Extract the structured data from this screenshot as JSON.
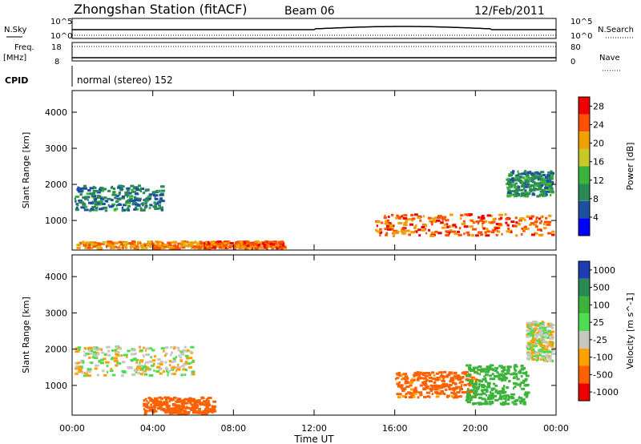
{
  "header": {
    "station": "Zhongshan Station (fitACF)",
    "beam": "Beam 06",
    "date": "12/Feb/2011"
  },
  "aux": {
    "nsky_label": "N.Sky",
    "nsky_ticks": [
      "10^5",
      "10^0"
    ],
    "nsearch_label": "N.Search",
    "nsearch_ticks": [
      "10^5",
      "10^0"
    ],
    "freq_label": "Freq.",
    "freq_unit": "[MHz]",
    "freq_ticks": [
      "18",
      "8"
    ],
    "nave_label": "Nave",
    "nave_ticks": [
      "80",
      "0"
    ],
    "cpid_label": "CPID",
    "cpid_text": "normal (stereo) 152"
  },
  "chart_data": [
    {
      "type": "heatmap",
      "title": "",
      "ylabel": "Slant Range [km]",
      "xlabel": "",
      "ylim": [
        180,
        4600
      ],
      "yticks": [
        "1000",
        "2000",
        "3000",
        "4000"
      ],
      "xticks": [
        "00:00",
        "04:00",
        "08:00",
        "12:00",
        "16:00",
        "20:00",
        "00:00"
      ],
      "colorbar": {
        "label": "Power [dB]",
        "range": [
          0,
          30
        ],
        "tick_labels": [
          "4",
          "8",
          "12",
          "16",
          "20",
          "24",
          "28"
        ],
        "colors": [
          "#0000ff",
          "#1e50a0",
          "#2a8a55",
          "#3cb43c",
          "#c8c828",
          "#f0a000",
          "#ff5000",
          "#ee0000"
        ]
      },
      "scatter_bands": [
        {
          "t0": 0.1,
          "t1": 4.5,
          "r0": 1300,
          "r1": 2000,
          "value": 8
        },
        {
          "t0": 0.1,
          "t1": 6.5,
          "r0": 250,
          "r1": 450,
          "value": 22
        },
        {
          "t0": 6.5,
          "t1": 10.5,
          "r0": 250,
          "r1": 450,
          "value": 24
        },
        {
          "t0": 15.0,
          "t1": 23.8,
          "r0": 600,
          "r1": 1200,
          "value": 24
        },
        {
          "t0": 21.5,
          "t1": 23.8,
          "r0": 1700,
          "r1": 2400,
          "value": 10
        }
      ]
    },
    {
      "type": "heatmap",
      "title": "",
      "ylabel": "Slant Range [km]",
      "xlabel": "Time UT",
      "ylim": [
        180,
        4600
      ],
      "yticks": [
        "1000",
        "2000",
        "3000",
        "4000"
      ],
      "xticks": [
        "00:00",
        "04:00",
        "08:00",
        "12:00",
        "16:00",
        "20:00",
        "00:00"
      ],
      "colorbar": {
        "label": "Velocity [m s^-1]",
        "tick_labels": [
          "1000",
          "500",
          "100",
          "25",
          "-25",
          "-100",
          "-500",
          "-1000"
        ],
        "colors": [
          "#1e3cb4",
          "#2a8a55",
          "#3cb43c",
          "#50dc50",
          "#c8c8c0",
          "#ffa000",
          "#ff6000",
          "#ee0000"
        ]
      },
      "scatter_bands": [
        {
          "t0": 0.1,
          "t1": 6.0,
          "r0": 1300,
          "r1": 2100,
          "value": 0
        },
        {
          "t0": 3.5,
          "t1": 7.0,
          "r0": 250,
          "r1": 700,
          "value": -300
        },
        {
          "t0": 16.0,
          "t1": 20.0,
          "r0": 700,
          "r1": 1400,
          "value": -150
        },
        {
          "t0": 19.5,
          "t1": 22.5,
          "r0": 500,
          "r1": 1600,
          "value": 200
        },
        {
          "t0": 22.5,
          "t1": 23.8,
          "r0": 1700,
          "r1": 2800,
          "value": 0
        }
      ]
    }
  ]
}
